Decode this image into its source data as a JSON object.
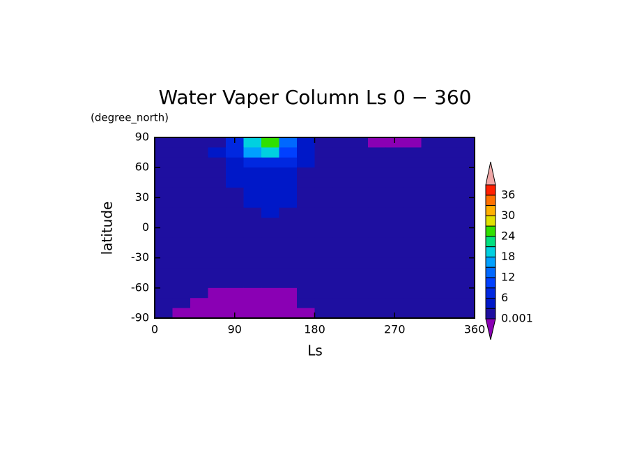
{
  "chart_data": {
    "type": "contour",
    "title": "Water Vaper Column Ls 0 − 360",
    "y_unit": "(degree_north)",
    "xlabel": "Ls",
    "ylabel": "latitude",
    "xlim": [
      0,
      360
    ],
    "xticks": [
      0,
      90,
      180,
      270,
      360
    ],
    "ylim": [
      -90,
      90
    ],
    "yticks": [
      -90,
      -60,
      -30,
      0,
      30,
      60,
      90
    ],
    "x": [
      10,
      30,
      50,
      70,
      90,
      110,
      130,
      150,
      170,
      190,
      210,
      230,
      250,
      270,
      290,
      310,
      330,
      350
    ],
    "y": [
      85,
      75,
      65,
      55,
      45,
      35,
      25,
      15,
      5,
      -5,
      -15,
      -25,
      -35,
      -45,
      -55,
      -65,
      -75,
      -85
    ],
    "z": [
      [
        1,
        1,
        1,
        2,
        6,
        20,
        25,
        12,
        4,
        1,
        1,
        1,
        0,
        0,
        0,
        1,
        1,
        1
      ],
      [
        1,
        1,
        1,
        3,
        7,
        15,
        18,
        9,
        3,
        1,
        1,
        1,
        1,
        1,
        1,
        1,
        1,
        1
      ],
      [
        1,
        1,
        1,
        2,
        5,
        8,
        8,
        6,
        3,
        1,
        1,
        1,
        1,
        1,
        1,
        1,
        1,
        1
      ],
      [
        1,
        1,
        1,
        1,
        4,
        5,
        5,
        5,
        2,
        1,
        1,
        1,
        1,
        1,
        1,
        1,
        1,
        1
      ],
      [
        1,
        1,
        1,
        1,
        3,
        4,
        4,
        4,
        2,
        1,
        1,
        1,
        1,
        1,
        1,
        1,
        1,
        1
      ],
      [
        1,
        1,
        1,
        1,
        2,
        3.5,
        3.5,
        3.5,
        2,
        1,
        1,
        1,
        1,
        1,
        1,
        1,
        1,
        1
      ],
      [
        1,
        1,
        1,
        1,
        1.5,
        3.2,
        3.3,
        3.2,
        1.5,
        1,
        1,
        1,
        1,
        1,
        1,
        1,
        1,
        1
      ],
      [
        1,
        1,
        1,
        1,
        1,
        2,
        3.1,
        2.5,
        1,
        1,
        1,
        1,
        1,
        1,
        1,
        1,
        1,
        1
      ],
      [
        1,
        1,
        1,
        1,
        1,
        1,
        1,
        1,
        1,
        1,
        1,
        1,
        1,
        1,
        1,
        1,
        1,
        1
      ],
      [
        1,
        1,
        1,
        1,
        1,
        1,
        1,
        1,
        1,
        1,
        1,
        1,
        1,
        1,
        1,
        1,
        1,
        1
      ],
      [
        1,
        1,
        1,
        1,
        1,
        1,
        1,
        1,
        1,
        1,
        1,
        1,
        1,
        1,
        1,
        1,
        1,
        1
      ],
      [
        1,
        1,
        1,
        1,
        1,
        1,
        1,
        1,
        1,
        1,
        1,
        1,
        1,
        1,
        1,
        1,
        1,
        1
      ],
      [
        1,
        1,
        1,
        1,
        1,
        1,
        1,
        1,
        1,
        1,
        1,
        1,
        1,
        1,
        1,
        1,
        1,
        1
      ],
      [
        1,
        1,
        1,
        1,
        1,
        1,
        1,
        1,
        1,
        1,
        1,
        1,
        1,
        1,
        1,
        1,
        1,
        1
      ],
      [
        1,
        1,
        1,
        1,
        1,
        1,
        1,
        1,
        1,
        1,
        1,
        1,
        1,
        1,
        1,
        1,
        1,
        1
      ],
      [
        1,
        1,
        1,
        0,
        0,
        0,
        0,
        0,
        1,
        1,
        1,
        1,
        1,
        1,
        1,
        1,
        1,
        1
      ],
      [
        1,
        1,
        0,
        0,
        0,
        0,
        0,
        0,
        1,
        1,
        1,
        1,
        1,
        1,
        1,
        1,
        1,
        1
      ],
      [
        1,
        0,
        0,
        0,
        0,
        0,
        0,
        0,
        0,
        1,
        1,
        1,
        1,
        1,
        1,
        1,
        1,
        1
      ]
    ],
    "levels": [
      0.001,
      3,
      6,
      9,
      12,
      15,
      18,
      21,
      24,
      27,
      30,
      33,
      36,
      39
    ],
    "colors": [
      "#8a00b4",
      "#1e0fa0",
      "#0018c8",
      "#0028e0",
      "#0040ff",
      "#0068ff",
      "#00a0ff",
      "#00d0e0",
      "#00e080",
      "#30e000",
      "#e0e000",
      "#ffb000",
      "#ff7000",
      "#ff2000",
      "#f0a8a8"
    ],
    "colorbar_ticks": [
      0.001,
      6,
      12,
      18,
      24,
      30,
      36
    ]
  }
}
